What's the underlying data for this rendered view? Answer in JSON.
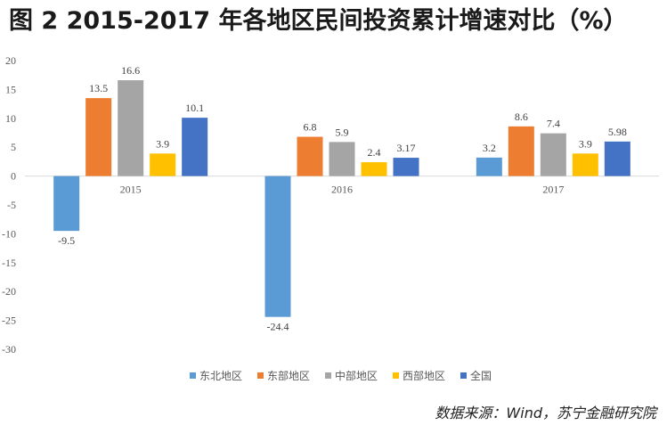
{
  "title": "图 2  2015-2017 年各地区民间投资累计增速对比（%）",
  "source": "数据来源：Wind，苏宁金融研究院",
  "chart_data": {
    "type": "bar",
    "categories": [
      "2015",
      "2016",
      "2017"
    ],
    "series": [
      {
        "name": "东北地区",
        "color": "#5b9bd5",
        "values": [
          -9.5,
          -24.4,
          3.2
        ],
        "labels": [
          "-9.5",
          "-24.4",
          "3.2"
        ]
      },
      {
        "name": "东部地区",
        "color": "#ed7d31",
        "values": [
          13.5,
          6.8,
          8.6
        ],
        "labels": [
          "13.5",
          "6.8",
          "8.6"
        ]
      },
      {
        "name": "中部地区",
        "color": "#a5a5a5",
        "values": [
          16.6,
          5.9,
          7.4
        ],
        "labels": [
          "16.6",
          "5.9",
          "7.4"
        ]
      },
      {
        "name": "西部地区",
        "color": "#ffc000",
        "values": [
          3.9,
          2.4,
          3.9
        ],
        "labels": [
          "3.9",
          "2.4",
          "3.9"
        ]
      },
      {
        "name": "全国",
        "color": "#4472c4",
        "values": [
          10.1,
          3.17,
          5.98
        ],
        "labels": [
          "10.1",
          "3.17",
          "5.98"
        ]
      }
    ],
    "yticks": [
      "20",
      "15",
      "10",
      "5",
      "0",
      "-5",
      "-10",
      "-15",
      "-20",
      "-25",
      "-30"
    ],
    "ylim": [
      -30,
      20
    ],
    "grid": false,
    "legend": "bottom"
  }
}
